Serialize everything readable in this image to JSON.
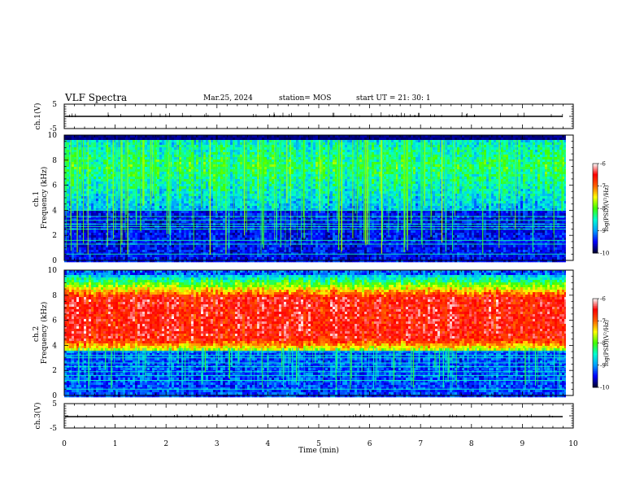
{
  "header": {
    "title": "VLF Spectra",
    "date": "Mar.25, 2024",
    "station": "station= MOS",
    "start": "start  UT =   21: 30: 1"
  },
  "chart_data": [
    {
      "type": "line",
      "panel": "waveform-ch1",
      "ylabel": "ch.1(V)",
      "ylim": [
        -5,
        5
      ],
      "yticks": [
        "5",
        "-5"
      ],
      "series": [
        {
          "x": [
            0,
            9.85
          ],
          "y": [
            0,
            0
          ]
        }
      ]
    },
    {
      "type": "heatmap",
      "panel": "spectrogram-ch1",
      "ylabel": "ch.1\nFrequency (kHz)",
      "xlim": [
        0,
        10
      ],
      "ylim": [
        0,
        10
      ],
      "yticks": [
        "0",
        "2",
        "4",
        "6",
        "8",
        "10"
      ],
      "data_extent_min": 9.85,
      "colorbar": {
        "label": "log(PSD)(V²/Hz)",
        "range": [
          -10,
          -6
        ],
        "ticks": [
          "-6",
          "-7",
          "-8",
          "-9",
          "-10"
        ]
      },
      "features": {
        "broadband_band_khz": [
          4.0,
          10.0
        ],
        "horizontal_lines_khz": [
          0.5,
          1.3,
          1.6,
          2.5,
          2.7,
          2.9,
          3.2,
          3.5,
          4.0
        ],
        "burst_count_approx": 130
      }
    },
    {
      "type": "heatmap",
      "panel": "spectrogram-ch2",
      "ylabel": "ch.2\nFrequency (kHz)",
      "xlim": [
        0,
        10
      ],
      "ylim": [
        0,
        10
      ],
      "yticks": [
        "0",
        "2",
        "4",
        "6",
        "8",
        "10"
      ],
      "data_extent_min": 9.85,
      "colorbar": {
        "label": "log(PSD)(V²/Hz)",
        "range": [
          -10,
          -6
        ],
        "ticks": [
          "-6",
          "-7",
          "-8",
          "-9",
          "-10"
        ]
      },
      "features": {
        "intense_band_khz": [
          4.5,
          8.0
        ],
        "intense_band_center_khz": 6.2,
        "horizontal_lines_khz": [
          0.5,
          1.2,
          1.6,
          1.9,
          2.3,
          2.6,
          3.0,
          3.2,
          3.5
        ],
        "burst_count_approx": 100
      }
    },
    {
      "type": "line",
      "panel": "waveform-ch3",
      "ylabel": "ch.3(V)",
      "xlabel": "Time (min)",
      "xlim": [
        0,
        10
      ],
      "xticks": [
        "0",
        "1",
        "2",
        "3",
        "4",
        "5",
        "6",
        "7",
        "8",
        "9",
        "10"
      ],
      "ylim": [
        -5,
        5
      ],
      "yticks": [
        "5",
        "-5"
      ],
      "series": [
        {
          "x": [
            0,
            9.85
          ],
          "y": [
            0,
            0
          ]
        }
      ]
    }
  ],
  "colors": {
    "colormap": [
      "#00002a",
      "#0000ff",
      "#00a0ff",
      "#00ffd0",
      "#40ff00",
      "#ffff00",
      "#ff6000",
      "#ff0000",
      "#ffffff"
    ],
    "axis": "#000000",
    "background": "#ffffff"
  }
}
